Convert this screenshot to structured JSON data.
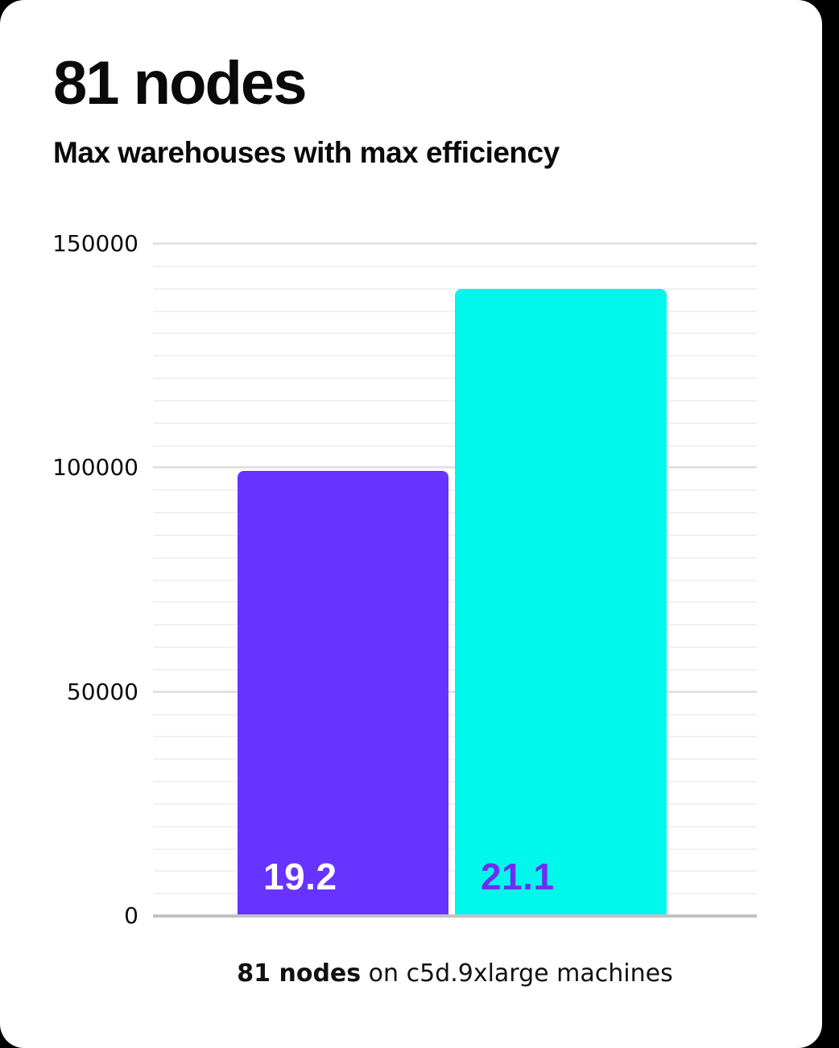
{
  "card": {
    "title": "81 nodes",
    "subtitle": "Max warehouses with max efficiency",
    "caption_bold": "81 nodes",
    "caption_rest": " on c5d.9xlarge machines"
  },
  "colors": {
    "page_bg": "#000000",
    "card_bg": "#ffffff",
    "text": "#0a0a0a",
    "grid_minor": "#f1f1f1",
    "grid_major": "#e2e2e2",
    "baseline": "#c2c2c2",
    "bar_fills": [
      "#6633ff",
      "#00f8ec"
    ],
    "bar_label_colors": [
      "#ffffff",
      "#6e2df2"
    ]
  },
  "chart_data": {
    "type": "bar",
    "title": "81 nodes",
    "subtitle": "Max warehouses with max efficiency",
    "caption": "81 nodes on c5d.9xlarge machines",
    "categories": [
      "19.2",
      "21.1"
    ],
    "values": [
      99400,
      140000
    ],
    "bar_labels": [
      "19.2",
      "21.1"
    ],
    "xlabel": "",
    "ylabel": "",
    "ylim": [
      0,
      150000
    ],
    "yticks": [
      0,
      50000,
      100000,
      150000
    ],
    "minor_gridline_step": 5000,
    "major_gridline_step": 50000,
    "grid": "horizontal",
    "legend": "none"
  }
}
